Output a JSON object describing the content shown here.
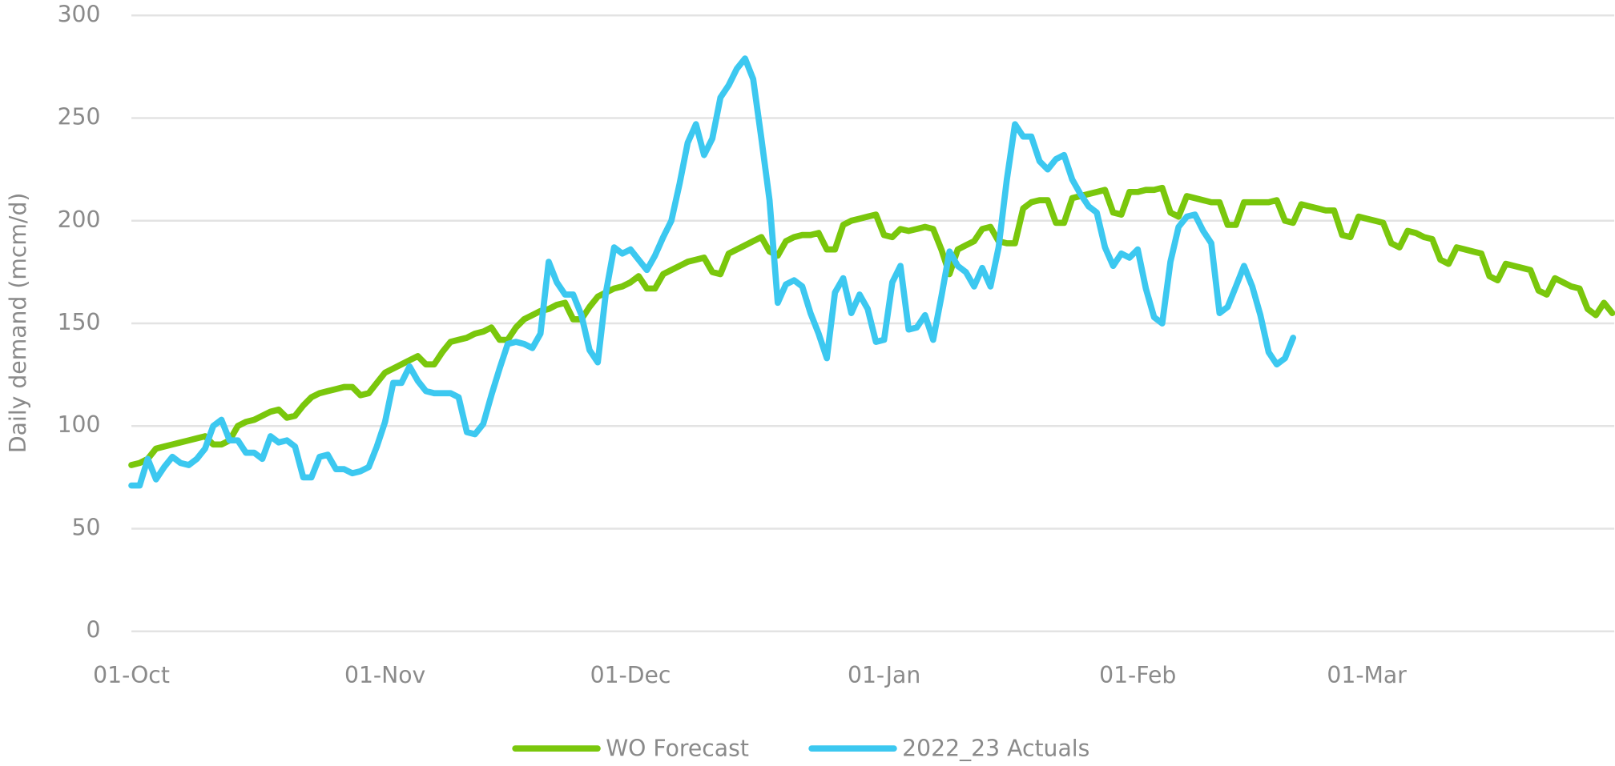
{
  "chart_data": {
    "type": "line",
    "y_label": "Daily demand (mcm/d)",
    "ylim": [
      0,
      300
    ],
    "yticks": [
      0,
      50,
      100,
      150,
      200,
      250,
      300
    ],
    "grid": true,
    "legend": "bottom",
    "categories": [
      "01-Oct",
      null,
      null,
      null,
      null,
      null,
      null,
      null,
      null,
      null,
      null,
      null,
      null,
      null,
      null,
      null,
      null,
      null,
      null,
      null,
      null,
      null,
      null,
      null,
      null,
      null,
      null,
      null,
      null,
      null,
      null,
      "01-Nov",
      null,
      null,
      null,
      null,
      null,
      null,
      null,
      null,
      null,
      null,
      null,
      null,
      null,
      null,
      null,
      null,
      null,
      null,
      null,
      null,
      null,
      null,
      null,
      null,
      null,
      null,
      null,
      null,
      null,
      "01-Dec",
      null,
      null,
      null,
      null,
      null,
      null,
      null,
      null,
      null,
      null,
      null,
      null,
      null,
      null,
      null,
      null,
      null,
      null,
      null,
      null,
      null,
      null,
      null,
      null,
      null,
      null,
      null,
      null,
      null,
      null,
      "01-Jan",
      null,
      null,
      null,
      null,
      null,
      null,
      null,
      null,
      null,
      null,
      null,
      null,
      null,
      null,
      null,
      null,
      null,
      null,
      null,
      null,
      null,
      null,
      null,
      null,
      null,
      null,
      null,
      null,
      null,
      null,
      "01-Feb",
      null,
      null,
      null,
      null,
      null,
      null,
      null,
      null,
      null,
      null,
      null,
      null,
      null,
      null,
      null,
      null,
      null,
      null,
      null,
      null,
      null,
      null,
      null,
      null,
      null,
      null,
      null,
      "01-Mar",
      null,
      null,
      null,
      null,
      null,
      null,
      null,
      null,
      null,
      null,
      null,
      null,
      null,
      null,
      null,
      null,
      null,
      null,
      null,
      null,
      null,
      null,
      null,
      null,
      null,
      null,
      null,
      null,
      null,
      null
    ],
    "series": [
      {
        "name": "WO Forecast",
        "color": "#7ac70c",
        "values": [
          81,
          82,
          84,
          89,
          90,
          91,
          92,
          93,
          94,
          95,
          91,
          91,
          93,
          100,
          102,
          103,
          105,
          107,
          108,
          104,
          105,
          110,
          114,
          116,
          117,
          118,
          119,
          119,
          115,
          116,
          121,
          126,
          128,
          130,
          132,
          134,
          130,
          130,
          136,
          141,
          142,
          143,
          145,
          146,
          148,
          142,
          142,
          148,
          152,
          154,
          156,
          157,
          159,
          160,
          152,
          152,
          158,
          163,
          165,
          167,
          168,
          170,
          173,
          167,
          167,
          174,
          176,
          178,
          180,
          181,
          182,
          175,
          174,
          184,
          186,
          188,
          190,
          192,
          185,
          183,
          190,
          192,
          193,
          193,
          194,
          186,
          186,
          198,
          200,
          201,
          202,
          203,
          193,
          192,
          196,
          195,
          196,
          197,
          196,
          186,
          174,
          186,
          188,
          190,
          196,
          197,
          190,
          189,
          189,
          206,
          209,
          210,
          210,
          199,
          199,
          211,
          212,
          213,
          214,
          215,
          204,
          203,
          214,
          214,
          215,
          215,
          216,
          204,
          202,
          212,
          211,
          210,
          209,
          209,
          198,
          198,
          209,
          209,
          209,
          209,
          210,
          200,
          199,
          208,
          207,
          206,
          205,
          205,
          193,
          192,
          202,
          201,
          200,
          199,
          189,
          187,
          195,
          194,
          192,
          191,
          181,
          179,
          187,
          186,
          185,
          184,
          173,
          171,
          179,
          178,
          177,
          176,
          166,
          164,
          172,
          170,
          168,
          167,
          157,
          154,
          160,
          155
        ]
      },
      {
        "name": "2022_23 Actuals",
        "color": "#3cc8f0",
        "values": [
          71,
          71,
          84,
          74,
          80,
          85,
          82,
          81,
          84,
          89,
          100,
          103,
          93,
          93,
          87,
          87,
          84,
          95,
          92,
          93,
          90,
          75,
          75,
          85,
          86,
          79,
          79,
          77,
          78,
          80,
          90,
          102,
          121,
          121,
          129,
          122,
          117,
          116,
          116,
          116,
          114,
          97,
          96,
          101,
          115,
          128,
          140,
          141,
          140,
          138,
          145,
          180,
          170,
          164,
          164,
          154,
          137,
          131,
          165,
          187,
          184,
          186,
          181,
          176,
          183,
          192,
          200,
          218,
          238,
          247,
          232,
          240,
          260,
          266,
          274,
          279,
          269,
          240,
          210,
          160,
          169,
          171,
          168,
          155,
          145,
          133,
          165,
          172,
          155,
          164,
          157,
          141,
          142,
          170,
          178,
          147,
          148,
          154,
          142,
          163,
          185,
          178,
          175,
          168,
          177,
          168,
          187,
          220,
          247,
          241,
          241,
          229,
          225,
          230,
          232,
          220,
          213,
          207,
          204,
          187,
          178,
          184,
          182,
          186,
          167,
          153,
          150,
          180,
          197,
          202,
          203,
          195,
          189,
          155,
          158,
          168,
          178,
          168,
          154,
          136,
          130,
          133,
          143,
          null,
          null,
          null,
          null,
          null,
          null,
          null,
          null,
          null,
          null,
          null,
          null,
          null,
          null,
          null,
          null,
          null,
          null,
          null,
          null,
          null,
          null,
          null,
          null,
          null,
          null,
          null,
          null,
          null,
          null,
          null,
          null,
          null,
          null,
          null,
          null,
          null,
          null,
          null
        ]
      }
    ]
  }
}
